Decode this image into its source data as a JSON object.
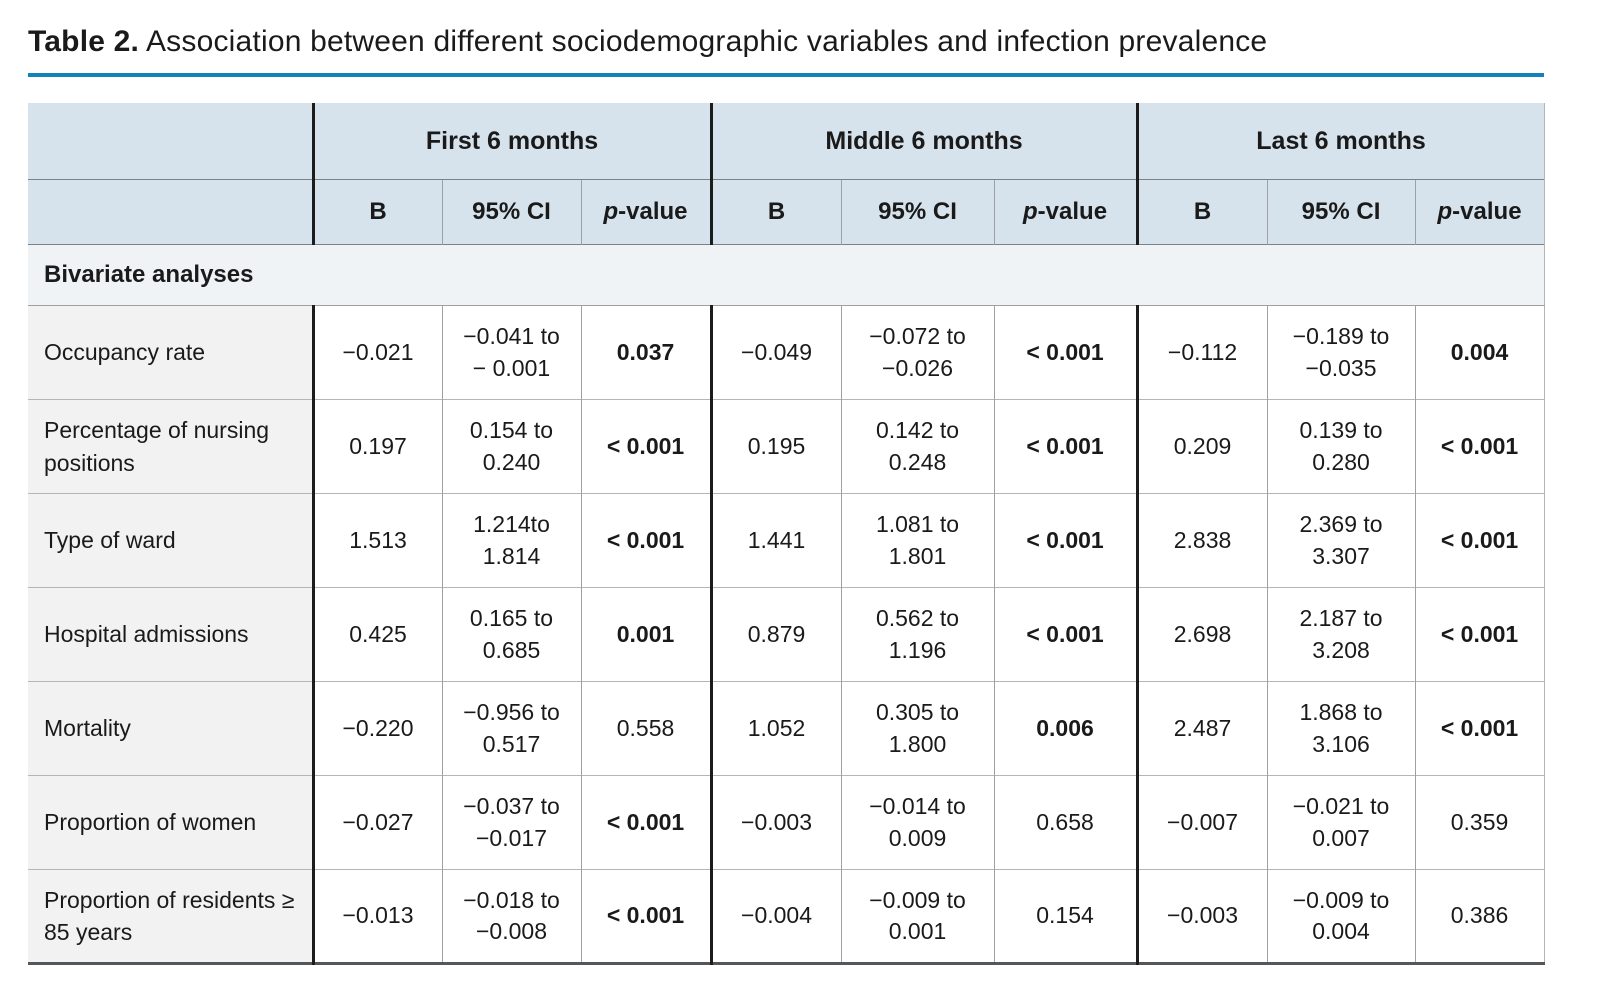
{
  "title": {
    "label": "Table 2.",
    "text": " Association between different sociodemographic variables and infection prevalence"
  },
  "accent_color": "#1581bb",
  "table": {
    "header": {
      "groups": [
        "First 6 months",
        "Middle 6 months",
        "Last 6 months"
      ],
      "sub": {
        "b": "B",
        "ci": "95% CI",
        "p_prefix": "p",
        "p_suffix": "-value"
      }
    },
    "section": "Bivariate analyses",
    "rows": [
      {
        "label": "Occupancy rate",
        "cells": [
          {
            "text": "−0.021",
            "bold": false
          },
          {
            "text": "−0.041 to\n− 0.001",
            "bold": false
          },
          {
            "text": "0.037",
            "bold": true
          },
          {
            "text": "−0.049",
            "bold": false
          },
          {
            "text": "−0.072 to\n−0.026",
            "bold": false
          },
          {
            "text": "< 0.001",
            "bold": true
          },
          {
            "text": "−0.112",
            "bold": false
          },
          {
            "text": "−0.189 to\n−0.035",
            "bold": false
          },
          {
            "text": "0.004",
            "bold": true
          }
        ]
      },
      {
        "label": "Percentage of nursing positions",
        "cells": [
          {
            "text": "0.197",
            "bold": false
          },
          {
            "text": "0.154 to\n0.240",
            "bold": false
          },
          {
            "text": "< 0.001",
            "bold": true
          },
          {
            "text": "0.195",
            "bold": false
          },
          {
            "text": "0.142 to\n0.248",
            "bold": false
          },
          {
            "text": "< 0.001",
            "bold": true
          },
          {
            "text": "0.209",
            "bold": false
          },
          {
            "text": "0.139 to\n0.280",
            "bold": false
          },
          {
            "text": "< 0.001",
            "bold": true
          }
        ]
      },
      {
        "label": "Type of ward",
        "cells": [
          {
            "text": "1.513",
            "bold": false
          },
          {
            "text": "1.214to\n1.814",
            "bold": false
          },
          {
            "text": "< 0.001",
            "bold": true
          },
          {
            "text": "1.441",
            "bold": false
          },
          {
            "text": "1.081 to\n1.801",
            "bold": false
          },
          {
            "text": "< 0.001",
            "bold": true
          },
          {
            "text": "2.838",
            "bold": false
          },
          {
            "text": "2.369 to\n3.307",
            "bold": false
          },
          {
            "text": "< 0.001",
            "bold": true
          }
        ]
      },
      {
        "label": "Hospital admissions",
        "cells": [
          {
            "text": "0.425",
            "bold": false
          },
          {
            "text": "0.165 to\n0.685",
            "bold": false
          },
          {
            "text": "0.001",
            "bold": true
          },
          {
            "text": "0.879",
            "bold": false
          },
          {
            "text": "0.562 to\n1.196",
            "bold": false
          },
          {
            "text": "< 0.001",
            "bold": true
          },
          {
            "text": "2.698",
            "bold": false
          },
          {
            "text": "2.187 to\n3.208",
            "bold": false
          },
          {
            "text": "< 0.001",
            "bold": true
          }
        ]
      },
      {
        "label": "Mortality",
        "cells": [
          {
            "text": "−0.220",
            "bold": false
          },
          {
            "text": "−0.956 to\n0.517",
            "bold": false
          },
          {
            "text": "0.558",
            "bold": false
          },
          {
            "text": "1.052",
            "bold": false
          },
          {
            "text": "0.305 to\n1.800",
            "bold": false
          },
          {
            "text": "0.006",
            "bold": true
          },
          {
            "text": "2.487",
            "bold": false
          },
          {
            "text": "1.868 to\n3.106",
            "bold": false
          },
          {
            "text": "< 0.001",
            "bold": true
          }
        ]
      },
      {
        "label": "Proportion of women",
        "cells": [
          {
            "text": "−0.027",
            "bold": false
          },
          {
            "text": "−0.037 to\n−0.017",
            "bold": false
          },
          {
            "text": "< 0.001",
            "bold": true
          },
          {
            "text": "−0.003",
            "bold": false
          },
          {
            "text": "−0.014 to\n0.009",
            "bold": false
          },
          {
            "text": "0.658",
            "bold": false
          },
          {
            "text": "−0.007",
            "bold": false
          },
          {
            "text": "−0.021 to\n0.007",
            "bold": false
          },
          {
            "text": "0.359",
            "bold": false
          }
        ]
      },
      {
        "label": "Proportion of residents ≥ 85 years",
        "cells": [
          {
            "text": "−0.013",
            "bold": false
          },
          {
            "text": "−0.018 to\n−0.008",
            "bold": false
          },
          {
            "text": "< 0.001",
            "bold": true
          },
          {
            "text": "−0.004",
            "bold": false
          },
          {
            "text": "−0.009 to\n0.001",
            "bold": false
          },
          {
            "text": "0.154",
            "bold": false
          },
          {
            "text": "−0.003",
            "bold": false
          },
          {
            "text": "−0.009 to\n0.004",
            "bold": false
          },
          {
            "text": "0.386",
            "bold": false
          }
        ]
      }
    ]
  }
}
